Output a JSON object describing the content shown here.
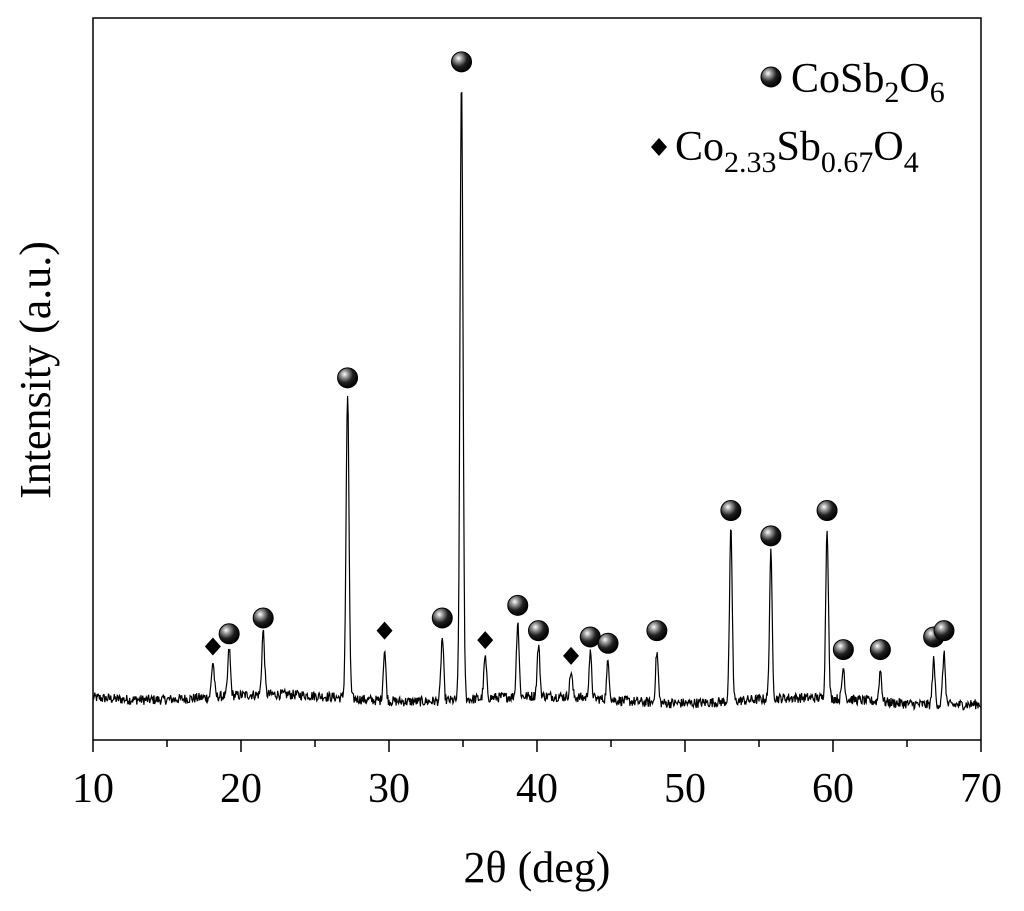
{
  "chart_data": {
    "type": "line",
    "xlabel": "2θ (deg)",
    "ylabel": "Intensity (a.u.)",
    "xlim": [
      10,
      70
    ],
    "ylim": [
      0,
      100
    ],
    "x_ticks": [
      "10",
      "20",
      "30",
      "40",
      "50",
      "60",
      "70"
    ],
    "grid": false,
    "y_ticks_labeled": false,
    "legend_position": "top-right",
    "legend": [
      {
        "marker": "circle",
        "base": "CoSb",
        "sub1": "2",
        "mid": "O",
        "sub2": "6",
        "tail": "",
        "sub3": ""
      },
      {
        "marker": "diamond",
        "base": "Co",
        "sub1": "2.33",
        "mid": "Sb",
        "sub2": "0.67",
        "tail": "O",
        "sub3": "4"
      }
    ],
    "baseline": 2.5,
    "series": [
      {
        "peaks": [
          {
            "x": 18.1,
            "y": 5.5,
            "phase": "diamond"
          },
          {
            "x": 19.2,
            "y": 7.5,
            "phase": "circle"
          },
          {
            "x": 21.5,
            "y": 10,
            "phase": "circle"
          },
          {
            "x": 27.2,
            "y": 48,
            "phase": "circle"
          },
          {
            "x": 29.7,
            "y": 8,
            "phase": "diamond"
          },
          {
            "x": 33.6,
            "y": 10,
            "phase": "circle"
          },
          {
            "x": 34.9,
            "y": 98,
            "phase": "circle"
          },
          {
            "x": 36.5,
            "y": 6.5,
            "phase": "diamond"
          },
          {
            "x": 38.7,
            "y": 12,
            "phase": "circle"
          },
          {
            "x": 40.1,
            "y": 8,
            "phase": "circle"
          },
          {
            "x": 42.3,
            "y": 4,
            "phase": "diamond"
          },
          {
            "x": 43.6,
            "y": 7,
            "phase": "circle"
          },
          {
            "x": 44.8,
            "y": 6,
            "phase": "circle"
          },
          {
            "x": 48.1,
            "y": 8,
            "phase": "circle"
          },
          {
            "x": 53.1,
            "y": 27,
            "phase": "circle"
          },
          {
            "x": 55.8,
            "y": 23,
            "phase": "circle"
          },
          {
            "x": 59.6,
            "y": 27,
            "phase": "circle"
          },
          {
            "x": 60.7,
            "y": 5,
            "phase": "circle"
          },
          {
            "x": 63.2,
            "y": 5,
            "phase": "circle"
          },
          {
            "x": 66.8,
            "y": 7,
            "phase": "circle"
          },
          {
            "x": 67.5,
            "y": 8,
            "phase": "circle"
          }
        ]
      }
    ],
    "colors": {
      "line": "#000000",
      "axis": "#000000",
      "marker": "#000000"
    }
  }
}
